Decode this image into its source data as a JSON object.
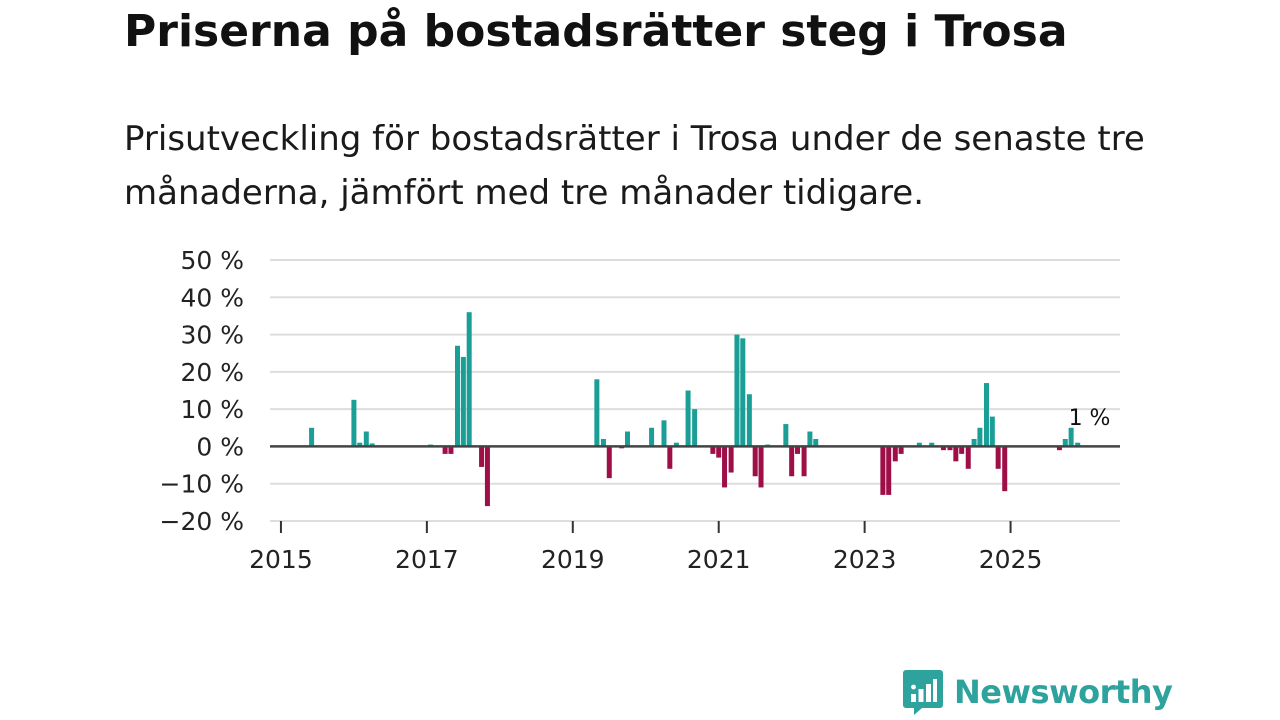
{
  "header": {
    "title": "Priserna på bostadsrätter steg i Trosa",
    "subtitle": "Prisutveckling för bostadsrätter i Trosa under de senaste tre månaderna, jämfört med tre månader tidigare."
  },
  "branding": {
    "name": "Newsworthy",
    "logo_icon": "bar-chart-speech-bubble-icon"
  },
  "colors": {
    "positive": "#1a9e96",
    "negative": "#9e0e47",
    "zero_line": "#444444",
    "grid": "#dddddd",
    "brand": "#2ea29c"
  },
  "chart_data": {
    "type": "bar",
    "title": "Priserna på bostadsrätter steg i Trosa",
    "subtitle": "Prisutveckling för bostadsrätter i Trosa under de senaste tre månaderna, jämfört med tre månader tidigare.",
    "xlabel": "",
    "ylabel": "",
    "ylim": [
      -20,
      50
    ],
    "xlim": [
      2014.85,
      2026.5
    ],
    "y_ticks": [
      50,
      40,
      30,
      20,
      10,
      0,
      -10,
      -20
    ],
    "y_tick_labels": [
      "50 %",
      "40 %",
      "30 %",
      "20 %",
      "10 %",
      "0 %",
      "−10 %",
      "−20 %"
    ],
    "x_ticks": [
      2015,
      2017,
      2019,
      2021,
      2023,
      2025
    ],
    "x_tick_labels": [
      "2015",
      "2017",
      "2019",
      "2021",
      "2023",
      "2025"
    ],
    "grid": true,
    "annotation": {
      "text": "1 %",
      "x": 2026.0,
      "value": 1
    },
    "x": [
      2015.42,
      2016.0,
      2016.08,
      2016.17,
      2016.25,
      2017.05,
      2017.25,
      2017.33,
      2017.42,
      2017.5,
      2017.58,
      2017.75,
      2017.83,
      2019.33,
      2019.42,
      2019.5,
      2019.67,
      2019.75,
      2020.08,
      2020.25,
      2020.33,
      2020.42,
      2020.58,
      2020.67,
      2020.92,
      2021.0,
      2021.08,
      2021.17,
      2021.25,
      2021.33,
      2021.42,
      2021.5,
      2021.58,
      2021.67,
      2021.92,
      2022.0,
      2022.08,
      2022.17,
      2022.25,
      2022.33,
      2023.25,
      2023.33,
      2023.42,
      2023.5,
      2023.75,
      2023.92,
      2024.08,
      2024.17,
      2024.25,
      2024.33,
      2024.42,
      2024.5,
      2024.58,
      2024.67,
      2024.75,
      2024.83,
      2024.92,
      2025.67,
      2025.75,
      2025.83,
      2025.92
    ],
    "values": [
      5,
      12.5,
      1,
      4,
      0.8,
      0.5,
      -2,
      -2,
      27,
      24,
      36,
      -5.5,
      -16,
      18,
      2,
      -8.5,
      -0.5,
      4,
      5,
      7,
      -6,
      1,
      15,
      10,
      -2,
      -3,
      -11,
      -7,
      30,
      29,
      14,
      -8,
      -11,
      0.5,
      6,
      -8,
      -2,
      -8,
      4,
      2,
      -13,
      -13,
      -4,
      -2,
      1,
      1,
      -1,
      -1,
      -4,
      -2,
      -6,
      2,
      5,
      17,
      8,
      -6,
      -12,
      -1,
      2,
      5,
      1
    ]
  }
}
